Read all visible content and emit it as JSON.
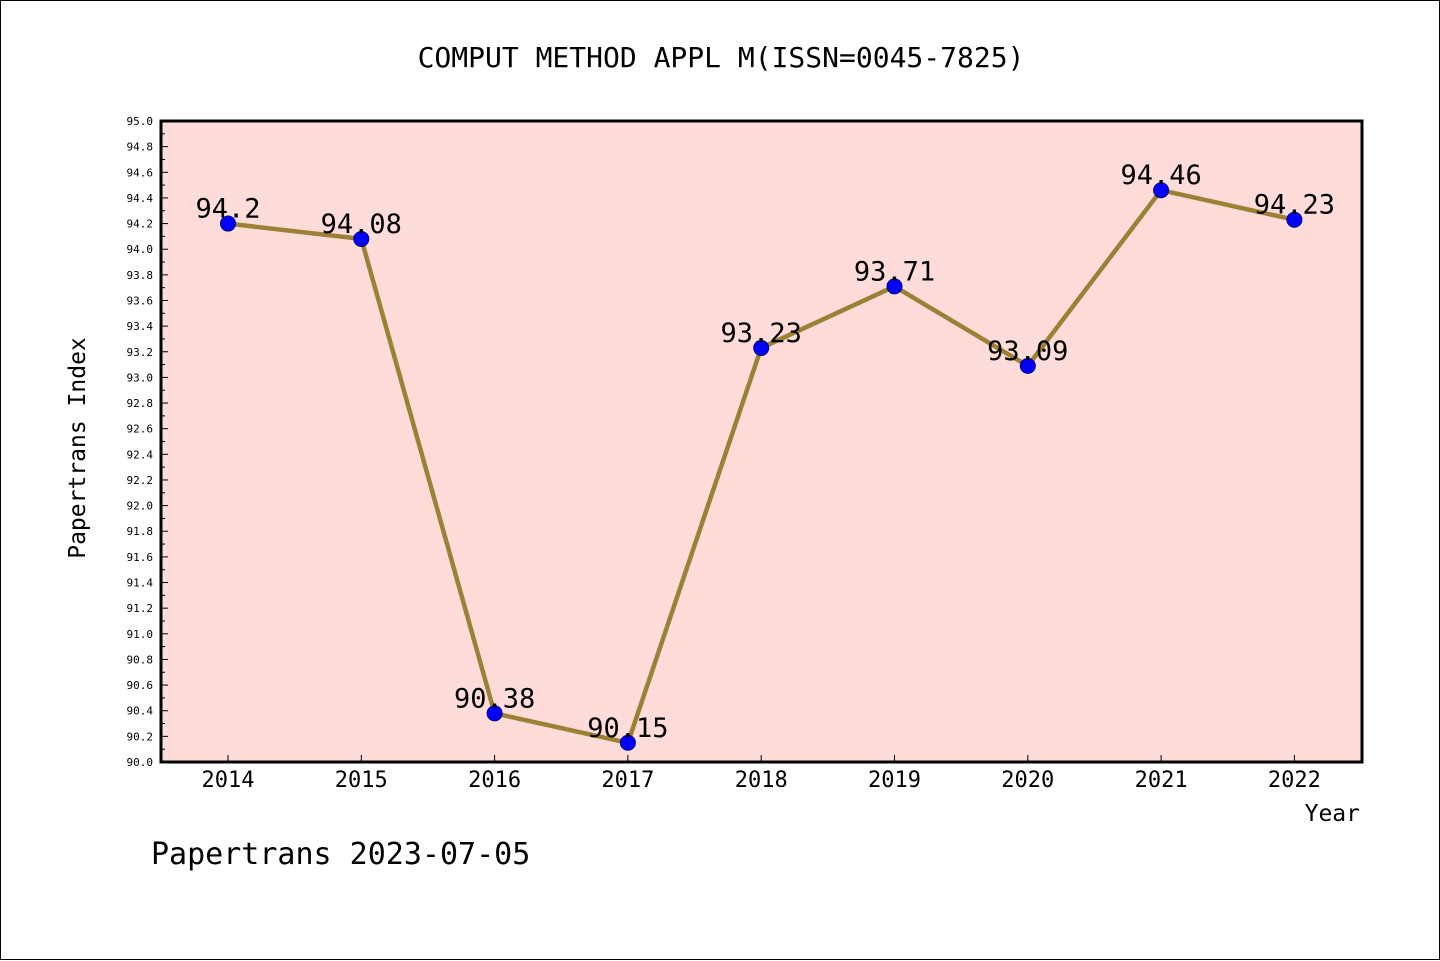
{
  "chart_data": {
    "type": "line",
    "title": "COMPUT METHOD APPL M(ISSN=0045-7825)",
    "xlabel": "Year",
    "ylabel": "Papertrans Index",
    "categories": [
      "2014",
      "2015",
      "2016",
      "2017",
      "2018",
      "2019",
      "2020",
      "2021",
      "2022"
    ],
    "series": [
      {
        "values": [
          94.2,
          94.08,
          90.38,
          90.15,
          93.23,
          93.71,
          93.09,
          94.46,
          94.23
        ]
      }
    ],
    "data_labels": [
      "94.2",
      "94.08",
      "90.38",
      "90.15",
      "93.23",
      "93.71",
      "93.09",
      "94.46",
      "94.23"
    ],
    "ylim": [
      90.0,
      95.0
    ],
    "yticks": [
      "90.0",
      "90.2",
      "90.4",
      "90.6",
      "90.8",
      "91.0",
      "91.2",
      "91.4",
      "91.6",
      "91.8",
      "92.0",
      "92.2",
      "92.4",
      "92.6",
      "92.8",
      "93.0",
      "93.2",
      "93.4",
      "93.6",
      "93.8",
      "94.0",
      "94.2",
      "94.4",
      "94.6",
      "94.8",
      "95.0"
    ],
    "grid": false,
    "legend": "none",
    "colors": {
      "plot_background": "#fddcda",
      "line": "#9c8035",
      "marker": "#0000ff",
      "marker_edge": "#000080"
    }
  },
  "footer": {
    "text": "Papertrans 2023-07-05"
  }
}
